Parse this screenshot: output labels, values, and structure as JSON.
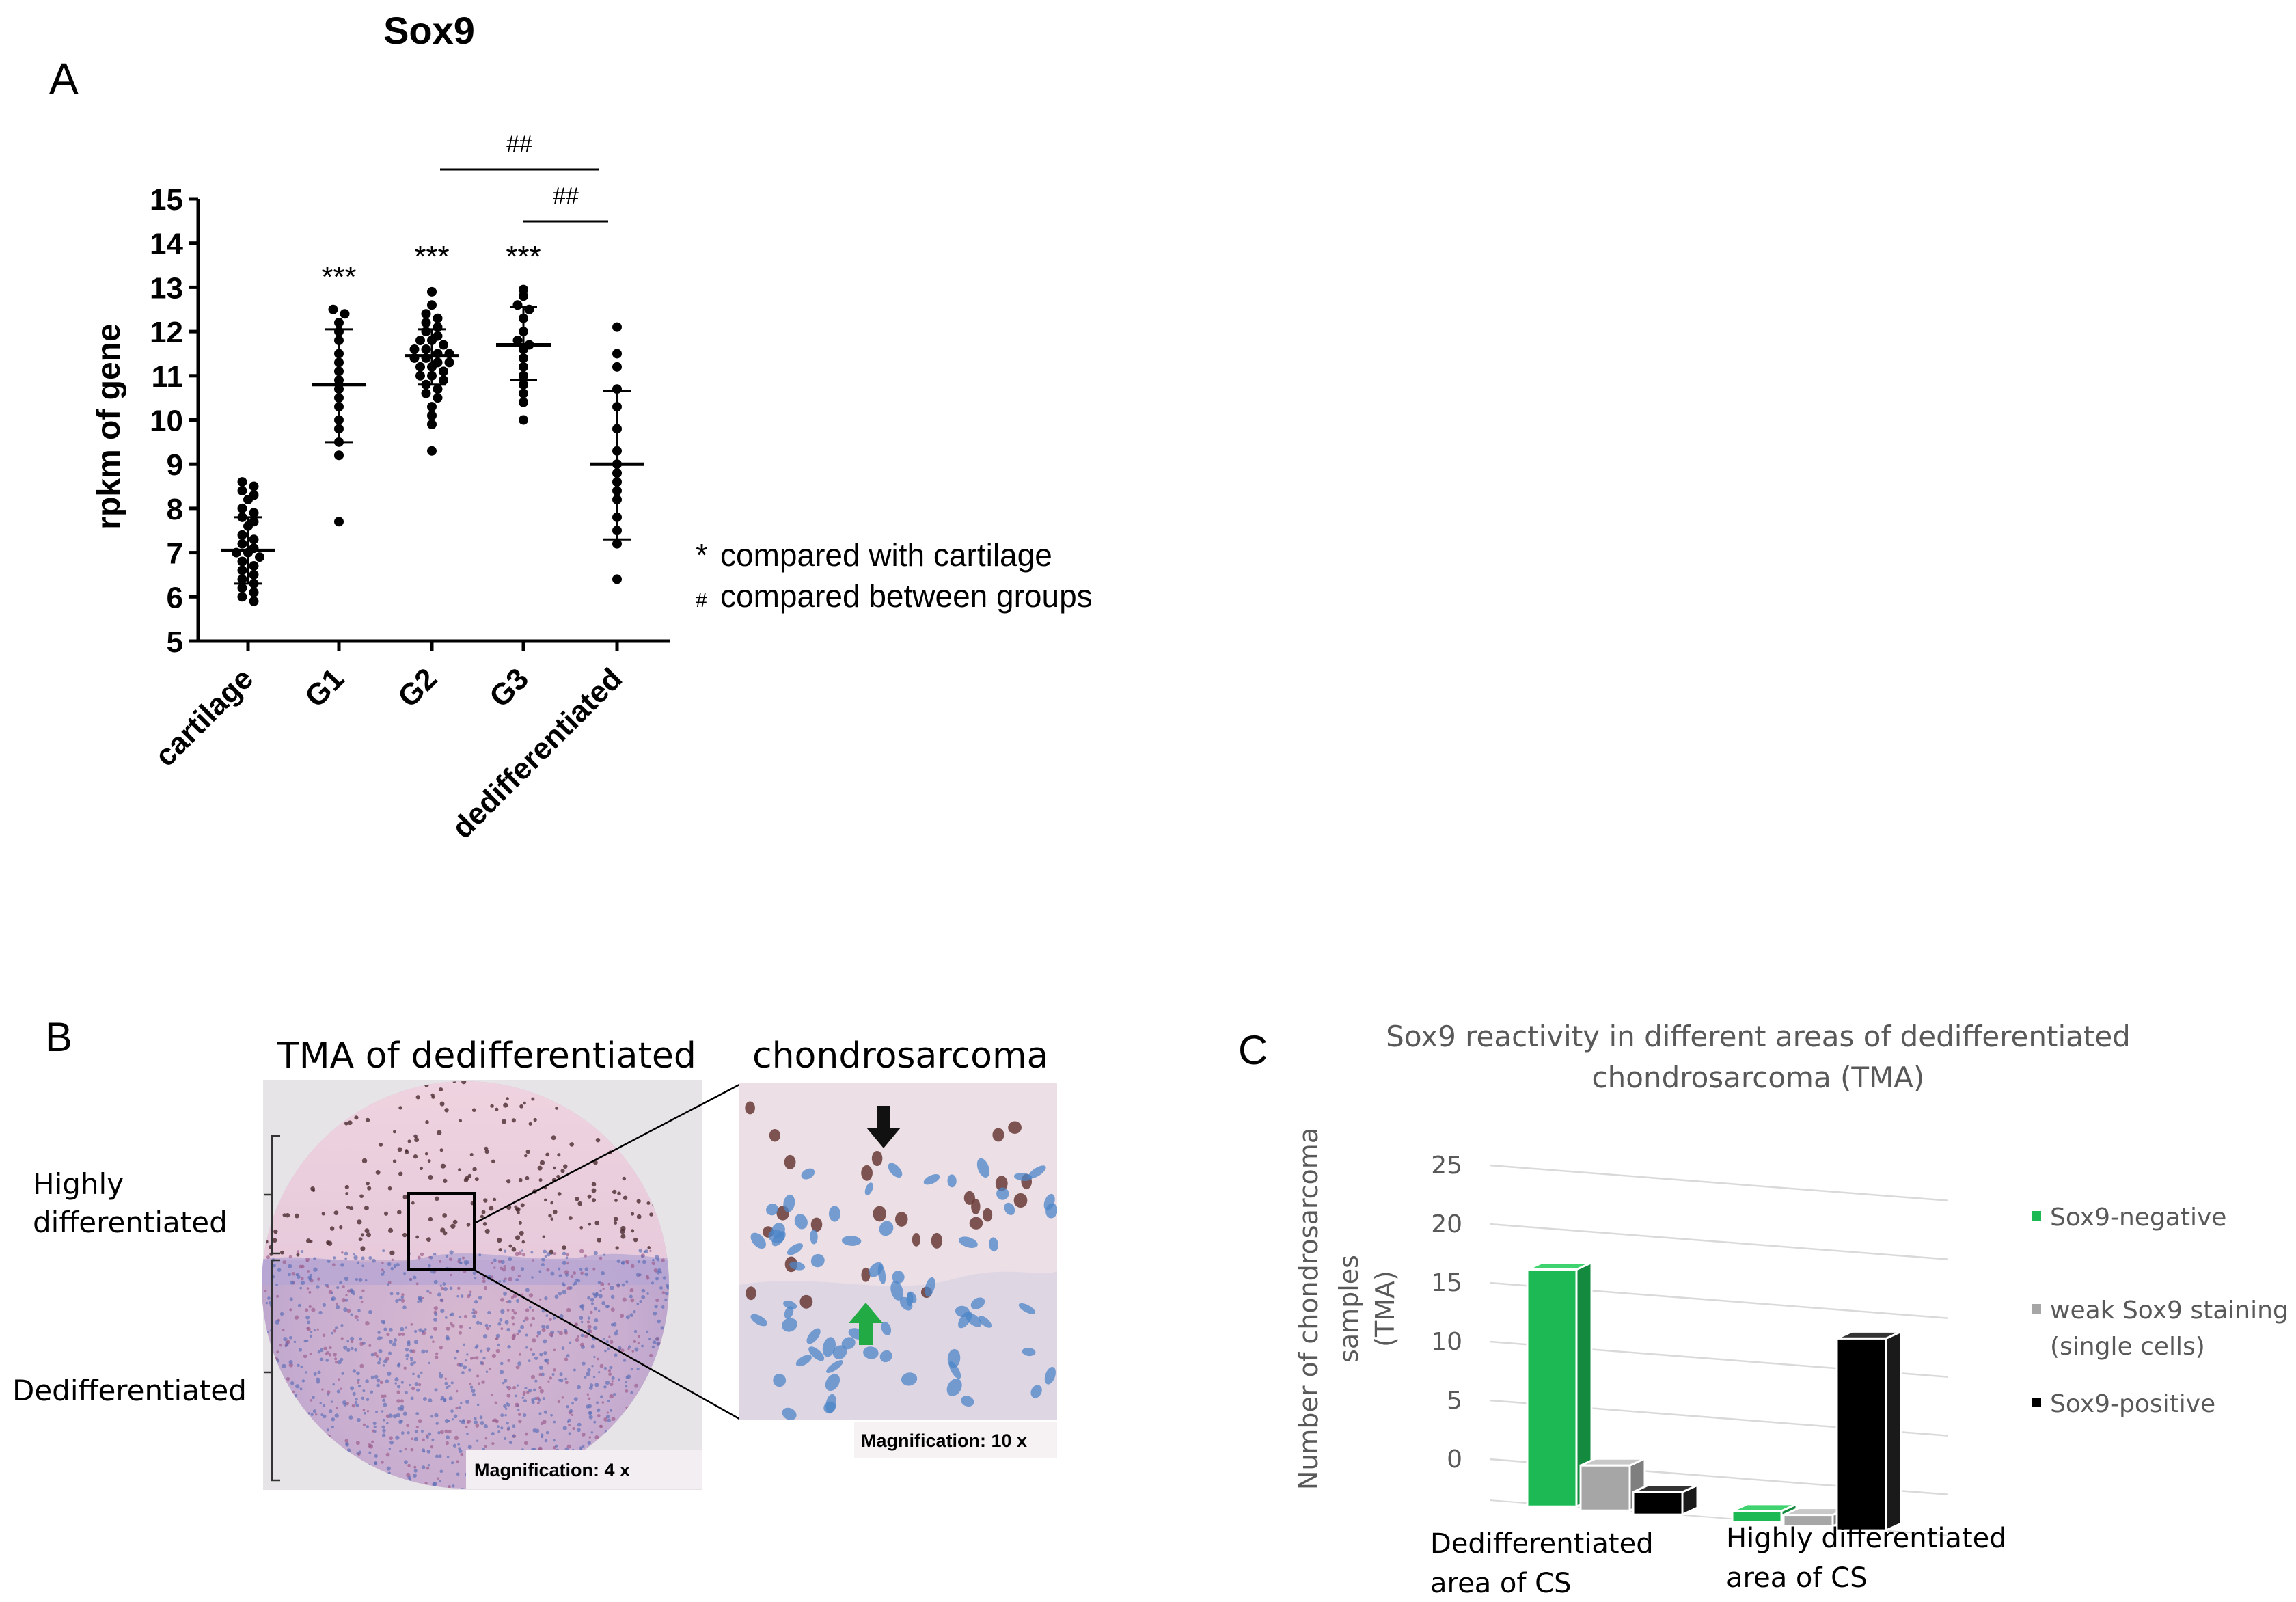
{
  "panel_a": {
    "letter": "A",
    "title": "Sox9",
    "ylabel": "rpkm of gene",
    "ylim": [
      5,
      15
    ],
    "yticks": [
      "5",
      "6",
      "7",
      "8",
      "9",
      "10",
      "11",
      "12",
      "13",
      "14",
      "15"
    ],
    "legend": {
      "star_symbol": "*",
      "star_text": "compared with cartilage",
      "hash_symbol": "#",
      "hash_text": "compared between groups"
    },
    "sig_top": "##",
    "sig_bottom": "##"
  },
  "panel_b": {
    "letter": "B",
    "title_left": "TMA of dedifferentiated",
    "title_right": "chondrosarcoma",
    "label_highly_1": "Highly",
    "label_highly_2": "differentiated",
    "label_dediff": "Dedifferentiated",
    "mag_left": "Magnification:  4 x",
    "mag_right": "Magnification:  10 x",
    "colors": {
      "positive_arrow": "#111111",
      "negative_arrow": "#22aa44",
      "stain_pink": "#e8c8d4",
      "stain_blue": "#6a7ab8",
      "nuclei_brown": "#5a3028"
    }
  },
  "panel_c": {
    "letter": "C",
    "title_1": "Sox9 reactivity in different areas of dedifferentiated",
    "title_2": "chondrosarcoma (TMA)",
    "ylabel_1": "Number of chondrosarcoma",
    "ylabel_2": "samples",
    "ylabel_3": "(TMA)",
    "group1_l1": "Dedifferentiated",
    "group1_l2": "area of CS",
    "group2_l1": "Highly differentiated",
    "group2_l2": "area of CS",
    "legend_neg": "Sox9-negative",
    "legend_weak_1": "weak Sox9 staining",
    "legend_weak_2": "(single cells)",
    "legend_pos": "Sox9-positive",
    "colors": {
      "negative": "#1db954",
      "weak": "#a6a6a6",
      "positive": "#000000"
    }
  },
  "chart_data": [
    {
      "type": "scatter",
      "title": "Sox9",
      "xlabel": "",
      "ylabel": "rpkm of gene",
      "ylim": [
        5,
        15
      ],
      "categories": [
        "cartilage",
        "G1",
        "G2",
        "G3",
        "dedifferentiated"
      ],
      "significance": [
        "",
        "***",
        "***",
        "***",
        ""
      ],
      "means": [
        7.05,
        10.8,
        11.45,
        11.7,
        9.0
      ],
      "sd_upper": [
        7.8,
        12.05,
        12.05,
        12.55,
        10.65
      ],
      "sd_lower": [
        6.3,
        9.5,
        10.8,
        10.9,
        7.3
      ],
      "points": [
        [
          8.6,
          8.5,
          8.4,
          8.3,
          8.2,
          8.0,
          7.9,
          7.8,
          7.7,
          7.6,
          7.4,
          7.3,
          7.2,
          7.1,
          7.0,
          7.0,
          6.9,
          6.8,
          6.7,
          6.6,
          6.5,
          6.4,
          6.3,
          6.2,
          6.1,
          6.0,
          5.9
        ],
        [
          12.5,
          12.4,
          12.2,
          12.0,
          11.8,
          11.5,
          11.3,
          11.1,
          10.9,
          10.7,
          10.5,
          10.3,
          10.0,
          9.8,
          9.5,
          9.2,
          7.7
        ],
        [
          12.9,
          12.6,
          12.4,
          12.3,
          12.2,
          12.1,
          12.0,
          11.9,
          11.8,
          11.8,
          11.7,
          11.6,
          11.6,
          11.5,
          11.5,
          11.4,
          11.4,
          11.3,
          11.3,
          11.2,
          11.2,
          11.1,
          11.0,
          11.0,
          10.9,
          10.8,
          10.7,
          10.6,
          10.5,
          10.3,
          10.1,
          9.9,
          9.3
        ],
        [
          12.95,
          12.8,
          12.6,
          12.5,
          12.3,
          12.0,
          11.8,
          11.7,
          11.6,
          11.4,
          11.2,
          11.0,
          10.8,
          10.6,
          10.4,
          10.0
        ],
        [
          12.1,
          11.5,
          11.2,
          10.7,
          10.3,
          9.8,
          9.3,
          9.0,
          8.8,
          8.6,
          8.4,
          8.2,
          7.8,
          7.5,
          7.2,
          6.4
        ]
      ],
      "brackets": [
        {
          "from": "G2",
          "to": "dedifferentiated",
          "label": "##"
        },
        {
          "from": "G3",
          "to": "dedifferentiated",
          "label": "##"
        }
      ]
    },
    {
      "type": "bar",
      "title": "Sox9 reactivity in different areas of dedifferentiated chondrosarcoma (TMA)",
      "xlabel": "",
      "ylabel": "Number of chondrosarcoma samples (TMA)",
      "ylim": [
        0,
        25
      ],
      "yticks": [
        "0",
        "5",
        "10",
        "15",
        "20",
        "25"
      ],
      "categories": [
        "Dedifferentiated area of CS",
        "Highly differentiated area of CS"
      ],
      "series": [
        {
          "name": "Sox9-negative",
          "values": [
            21,
            1
          ]
        },
        {
          "name": "weak Sox9 staining (single cells)",
          "values": [
            4,
            1
          ]
        },
        {
          "name": "Sox9-positive",
          "values": [
            2,
            17
          ]
        }
      ],
      "legend_position": "right",
      "projection": "3d"
    }
  ]
}
